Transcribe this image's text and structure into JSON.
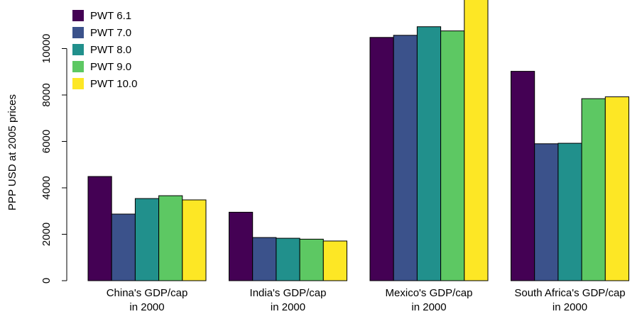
{
  "chart_data": {
    "type": "bar",
    "title": "",
    "xlabel": "",
    "ylabel": "PPP USD at 2005 prices",
    "ylim": [
      0,
      12000
    ],
    "yticks": [
      0,
      2000,
      4000,
      6000,
      8000,
      10000
    ],
    "grid": false,
    "legend_position": "top-left",
    "categories": [
      [
        "China's GDP/cap",
        "in 2000"
      ],
      [
        "India's GDP/cap",
        "in 2000"
      ],
      [
        "Mexico's GDP/cap",
        "in 2000"
      ],
      [
        "South Africa's GDP/cap",
        "in 2000"
      ]
    ],
    "series": [
      {
        "name": "PWT 6.1",
        "color": "#440154",
        "values": [
          4490,
          2950,
          10480,
          9020
        ]
      },
      {
        "name": "PWT 7.0",
        "color": "#3b528b",
        "values": [
          2870,
          1860,
          10570,
          5900
        ]
      },
      {
        "name": "PWT 8.0",
        "color": "#21908c",
        "values": [
          3540,
          1830,
          10940,
          5920
        ]
      },
      {
        "name": "PWT 9.0",
        "color": "#5dc863",
        "values": [
          3660,
          1790,
          10760,
          7840
        ]
      },
      {
        "name": "PWT 10.0",
        "color": "#fde725",
        "values": [
          3480,
          1710,
          12110,
          7920
        ]
      }
    ]
  }
}
